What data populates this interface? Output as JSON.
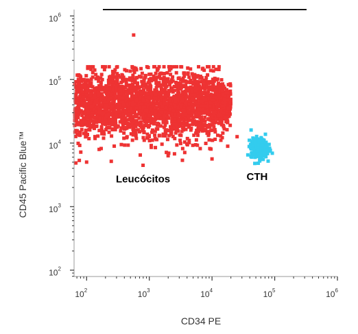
{
  "chart_data": {
    "type": "scatter",
    "title": "",
    "xlabel": "CD34 PE",
    "ylabel": "CD45 Pacific Blue™",
    "x_scale": "log",
    "y_scale": "log",
    "xlim": [
      1.8,
      6.0
    ],
    "ylim": [
      1.9,
      6.1
    ],
    "grid": false,
    "legend": "none",
    "x_ticks": [
      {
        "value": 2,
        "base": "10",
        "exp": "2"
      },
      {
        "value": 3,
        "base": "10",
        "exp": "3"
      },
      {
        "value": 4,
        "base": "10",
        "exp": "4"
      },
      {
        "value": 5,
        "base": "10",
        "exp": "5"
      },
      {
        "value": 6,
        "base": "10",
        "exp": "6"
      }
    ],
    "y_ticks": [
      {
        "value": 2,
        "base": "10",
        "exp": "2"
      },
      {
        "value": 3,
        "base": "10",
        "exp": "3"
      },
      {
        "value": 4,
        "base": "10",
        "exp": "4"
      },
      {
        "value": 5,
        "base": "10",
        "exp": "5"
      },
      {
        "value": 6,
        "base": "10",
        "exp": "6"
      }
    ],
    "series": [
      {
        "color": "#ee3333",
        "cluster": {
          "x_range": [
            1.8,
            4.3
          ],
          "y_center": 4.6,
          "y_spread": 0.35,
          "count": 2600
        },
        "outliers": [
          [
            2.75,
            5.7
          ],
          [
            2.0,
            3.7
          ],
          [
            2.9,
            3.65
          ],
          [
            4.0,
            3.75
          ],
          [
            4.25,
            3.95
          ],
          [
            4.4,
            4.1
          ],
          [
            3.3,
            3.8
          ],
          [
            2.2,
            3.9
          ]
        ]
      },
      {
        "color": "#33ccee",
        "cluster": {
          "x_center": 4.75,
          "x_spread": 0.08,
          "y_center": 3.92,
          "y_spread": 0.1,
          "count": 260
        }
      }
    ],
    "annotations": [
      {
        "text": "Leucócitos",
        "x": 2.9,
        "y": 3.38
      },
      {
        "text": "CTH",
        "x": 4.72,
        "y": 3.42
      }
    ]
  }
}
